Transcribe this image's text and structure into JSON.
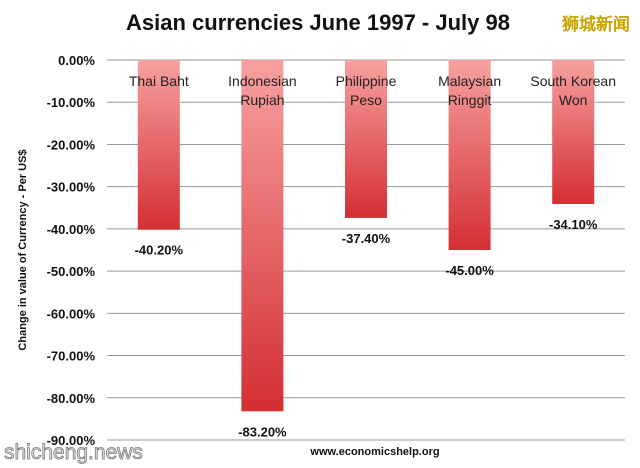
{
  "chart_data": {
    "type": "bar",
    "title": "Asian currencies June 1997 - July 98",
    "ylabel": "Change in value of Currency - Per US$",
    "categories": [
      [
        "Thai Baht"
      ],
      [
        "Indonesian",
        "Rupiah"
      ],
      [
        "Philippine",
        "Peso"
      ],
      [
        "Malaysian",
        "Ringgit"
      ],
      [
        "South Korean",
        "Won"
      ]
    ],
    "values": [
      -40.2,
      -83.2,
      -37.4,
      -45.0,
      -34.1
    ],
    "data_labels": [
      "-40.20%",
      "-83.20%",
      "-37.40%",
      "-45.00%",
      "-34.10%"
    ],
    "ylim": [
      -90,
      0
    ],
    "yticks": [
      0,
      -10,
      -20,
      -30,
      -40,
      -50,
      -60,
      -70,
      -80,
      -90
    ],
    "ytick_labels": [
      "0.00%",
      "-10.00%",
      "-20.00%",
      "-30.00%",
      "-40.00%",
      "-50.00%",
      "-60.00%",
      "-70.00%",
      "-80.00%",
      "-90.00%"
    ],
    "grid": true,
    "bar_colors": {
      "light": "#f7a0a0",
      "dark": "#d42f33"
    },
    "grid_color": "#9a9a9a"
  },
  "source": "www.economicshelp.org",
  "watermark": {
    "chinese": "狮城新闻",
    "english": "shicheng.news"
  }
}
